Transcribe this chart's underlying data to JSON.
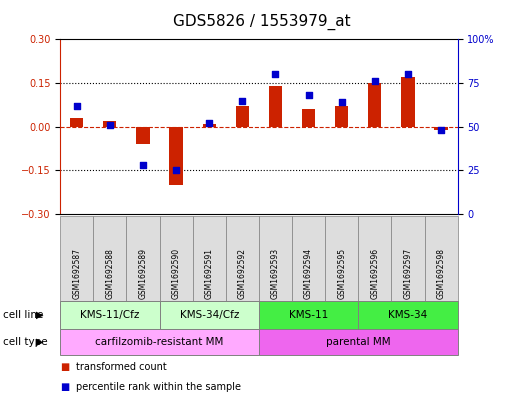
{
  "title": "GDS5826 / 1553979_at",
  "samples": [
    "GSM1692587",
    "GSM1692588",
    "GSM1692589",
    "GSM1692590",
    "GSM1692591",
    "GSM1692592",
    "GSM1692593",
    "GSM1692594",
    "GSM1692595",
    "GSM1692596",
    "GSM1692597",
    "GSM1692598"
  ],
  "transformed_count": [
    0.03,
    0.02,
    -0.06,
    -0.2,
    0.01,
    0.07,
    0.14,
    0.06,
    0.07,
    0.15,
    0.17,
    -0.01
  ],
  "percentile_rank": [
    62,
    51,
    28,
    25,
    52,
    65,
    80,
    68,
    64,
    76,
    80,
    48
  ],
  "ylim_left": [
    -0.3,
    0.3
  ],
  "ylim_right": [
    0,
    100
  ],
  "yticks_left": [
    -0.3,
    -0.15,
    0.0,
    0.15,
    0.3
  ],
  "yticks_right": [
    0,
    25,
    50,
    75,
    100
  ],
  "cell_line_groups": [
    {
      "label": "KMS-11/Cfz",
      "start": 0,
      "end": 3,
      "color": "#ccffcc"
    },
    {
      "label": "KMS-34/Cfz",
      "start": 3,
      "end": 6,
      "color": "#ccffcc"
    },
    {
      "label": "KMS-11",
      "start": 6,
      "end": 9,
      "color": "#44ee44"
    },
    {
      "label": "KMS-34",
      "start": 9,
      "end": 12,
      "color": "#44ee44"
    }
  ],
  "cell_type_groups": [
    {
      "label": "carfilzomib-resistant MM",
      "start": 0,
      "end": 6,
      "color": "#ffaaff"
    },
    {
      "label": "parental MM",
      "start": 6,
      "end": 12,
      "color": "#ee66ee"
    }
  ],
  "bar_color": "#cc2200",
  "dot_color": "#0000cc",
  "grid_color": "#000000",
  "zero_line_color": "#cc2200",
  "left_axis_color": "#cc2200",
  "right_axis_color": "#0000cc",
  "title_fontsize": 11,
  "tick_fontsize": 7,
  "sample_fontsize": 5.5,
  "row_label_fontsize": 7.5,
  "legend_fontsize": 7,
  "bar_width": 0.4
}
